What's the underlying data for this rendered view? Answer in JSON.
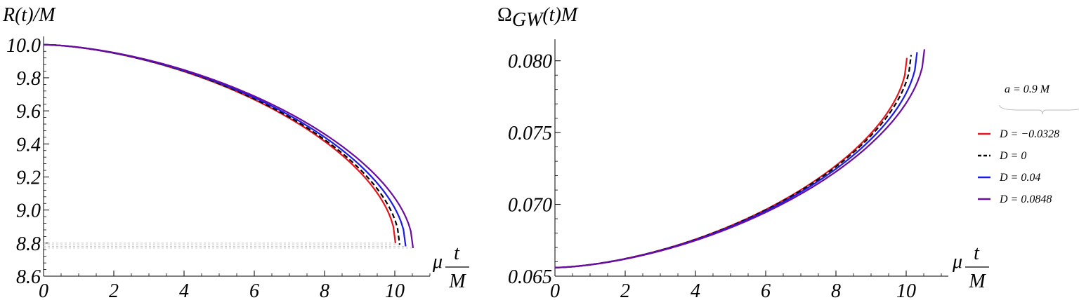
{
  "chart_data": [
    {
      "type": "line",
      "ylabel": "R(t)/M",
      "xlabel_prefix": "μ",
      "xlabel_num": "t",
      "xlabel_den": "M",
      "xlim": [
        0,
        11.0
      ],
      "ylim": [
        8.6,
        10.05
      ],
      "xticks": [
        0,
        2,
        4,
        6,
        8,
        10
      ],
      "xtick_labels": [
        "0",
        "2",
        "4",
        "6",
        "8",
        "10"
      ],
      "yticks": [
        8.6,
        8.8,
        9.0,
        9.2,
        9.4,
        9.6,
        9.8,
        10.0
      ],
      "ytick_labels": [
        "8.6",
        "8.8",
        "9.0",
        "9.2",
        "9.4",
        "9.6",
        "9.8",
        "10.0"
      ],
      "series": [
        {
          "name": "D = −0.0328",
          "color": "#e8141b",
          "dash": false,
          "x_end": 10.02,
          "y_start": 10.0,
          "y_end": 8.8
        },
        {
          "name": "D = 0",
          "color": "#000000",
          "dash": true,
          "x_end": 10.14,
          "y_start": 10.0,
          "y_end": 8.79
        },
        {
          "name": "D = 0.04",
          "color": "#1b1be8",
          "dash": false,
          "x_end": 10.31,
          "y_start": 10.0,
          "y_end": 8.78
        },
        {
          "name": "D = 0.0848",
          "color": "#6a0d9e",
          "dash": false,
          "x_end": 10.52,
          "y_start": 10.0,
          "y_end": 8.77
        }
      ]
    },
    {
      "type": "line",
      "ylabel_main": "Ω",
      "ylabel_sub": "GW",
      "ylabel_rest": "(t)M",
      "xlabel_prefix": "μ",
      "xlabel_num": "t",
      "xlabel_den": "M",
      "xlim": [
        0,
        11.0
      ],
      "ylim": [
        0.065,
        0.0815
      ],
      "xticks": [
        0,
        2,
        4,
        6,
        8,
        10
      ],
      "xtick_labels": [
        "0",
        "2",
        "4",
        "6",
        "8",
        "10"
      ],
      "yticks": [
        0.065,
        0.07,
        0.075,
        0.08
      ],
      "ytick_labels": [
        "0.065",
        "0.070",
        "0.075",
        "0.080"
      ],
      "series": [
        {
          "name": "D = −0.0328",
          "color": "#e8141b",
          "dash": false,
          "x_end": 10.02,
          "y_start": 0.0656,
          "y_end": 0.0802
        },
        {
          "name": "D = 0",
          "color": "#000000",
          "dash": true,
          "x_end": 10.14,
          "y_start": 0.0656,
          "y_end": 0.0804
        },
        {
          "name": "D = 0.04",
          "color": "#1b1be8",
          "dash": false,
          "x_end": 10.31,
          "y_start": 0.0656,
          "y_end": 0.0806
        },
        {
          "name": "D = 0.0848",
          "color": "#6a0d9e",
          "dash": false,
          "x_end": 10.52,
          "y_start": 0.0656,
          "y_end": 0.0808
        }
      ]
    }
  ],
  "legend": {
    "header": "a = 0.9 M",
    "entries": [
      {
        "label": "D = −0.0328",
        "color": "#e8141b",
        "dash": false
      },
      {
        "label": "D = 0",
        "color": "#000000",
        "dash": true
      },
      {
        "label": "D = 0.04",
        "color": "#1b1be8",
        "dash": false
      },
      {
        "label": "D = 0.0848",
        "color": "#6a0d9e",
        "dash": false
      }
    ]
  }
}
